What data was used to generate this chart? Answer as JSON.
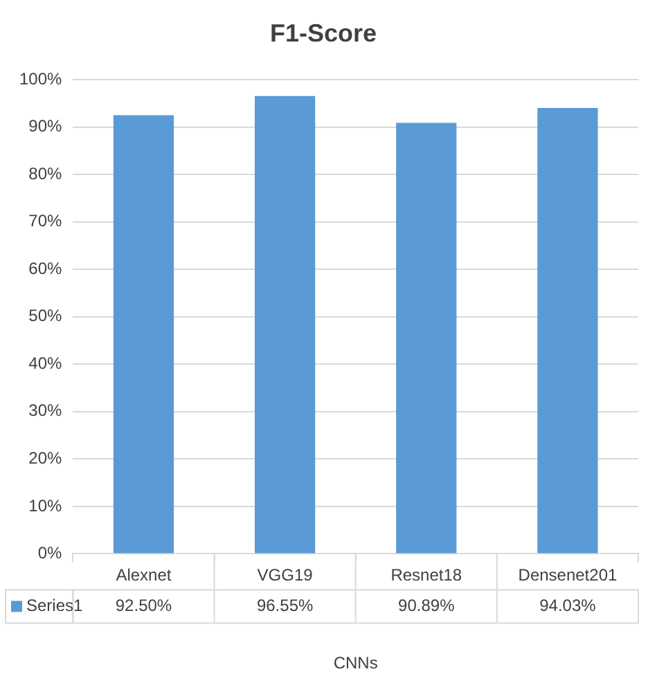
{
  "chart_data": {
    "type": "bar",
    "title": "F1-Score",
    "xlabel": "CNNs",
    "categories": [
      "Alexnet",
      "VGG19",
      "Resnet18",
      "Densenet201"
    ],
    "series": [
      {
        "name": "Series1",
        "color": "#5b9bd5",
        "values": [
          92.5,
          96.55,
          90.89,
          94.03
        ],
        "value_labels": [
          "92.50%",
          "96.55%",
          "90.89%",
          "94.03%"
        ]
      }
    ],
    "ylim": [
      0,
      100
    ],
    "yticks": [
      {
        "value": 0,
        "label": "0%"
      },
      {
        "value": 10,
        "label": "10%"
      },
      {
        "value": 20,
        "label": "20%"
      },
      {
        "value": 30,
        "label": "30%"
      },
      {
        "value": 40,
        "label": "40%"
      },
      {
        "value": 50,
        "label": "50%"
      },
      {
        "value": 60,
        "label": "60%"
      },
      {
        "value": 70,
        "label": "70%"
      },
      {
        "value": 80,
        "label": "80%"
      },
      {
        "value": 90,
        "label": "90%"
      },
      {
        "value": 100,
        "label": "100%"
      }
    ],
    "grid": "y",
    "legend": "bottom"
  }
}
